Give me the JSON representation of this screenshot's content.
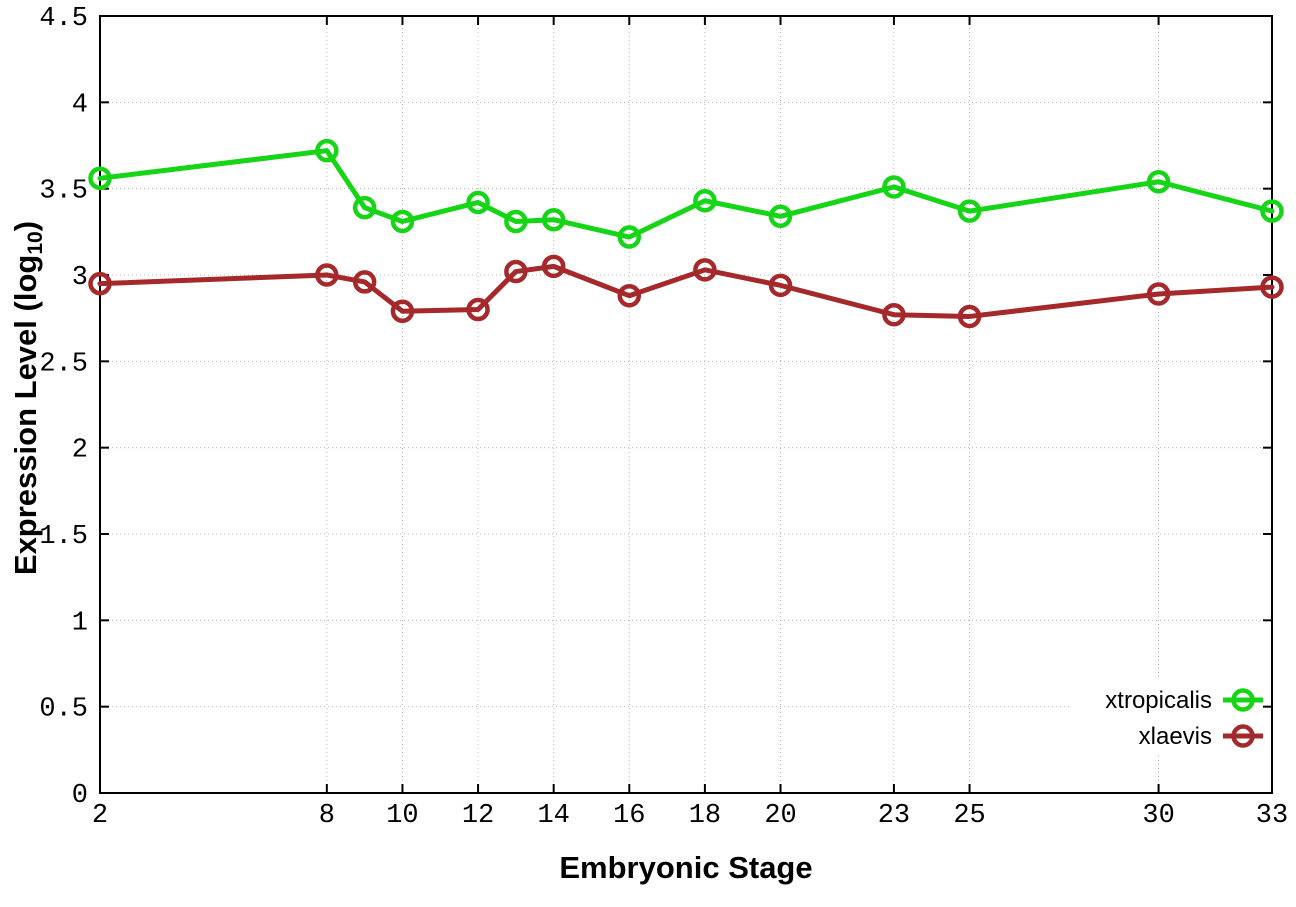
{
  "figure": {
    "background": "#ffffff",
    "axis_color": "#000000",
    "grid_color": "#b8b8b8",
    "text_color": "#000000"
  },
  "chart_data": {
    "type": "line",
    "x": [
      2,
      8,
      9,
      10,
      12,
      13,
      14,
      16,
      18,
      20,
      23,
      25,
      30,
      33
    ],
    "series": [
      {
        "name": "xtropicalis",
        "color": "#16d516",
        "marker": "open-circle",
        "values": [
          3.56,
          3.72,
          3.39,
          3.31,
          3.42,
          3.31,
          3.32,
          3.22,
          3.43,
          3.34,
          3.51,
          3.37,
          3.54,
          3.37
        ]
      },
      {
        "name": "xlaevis",
        "color": "#a5282b",
        "marker": "open-circle",
        "values": [
          2.95,
          3.0,
          2.96,
          2.79,
          2.8,
          3.02,
          3.05,
          2.88,
          3.03,
          2.94,
          2.77,
          2.76,
          2.89,
          2.93
        ]
      }
    ],
    "title": "",
    "xlabel": "Embryonic Stage",
    "ylabel": "Expression Level (log10)",
    "ylabel_parts": {
      "main": "Expression Level (log",
      "sub": "10",
      "close": ")"
    },
    "xlim": [
      2,
      33
    ],
    "ylim": [
      0,
      4.5
    ],
    "xticks": [
      2,
      8,
      10,
      12,
      14,
      16,
      18,
      20,
      23,
      25,
      30,
      33
    ],
    "yticks": [
      0,
      0.5,
      1,
      1.5,
      2,
      2.5,
      3,
      3.5,
      4,
      4.5
    ],
    "grid": true,
    "grid_style": "dotted",
    "legend_position": "bottom-right",
    "legend_opaque": true
  }
}
